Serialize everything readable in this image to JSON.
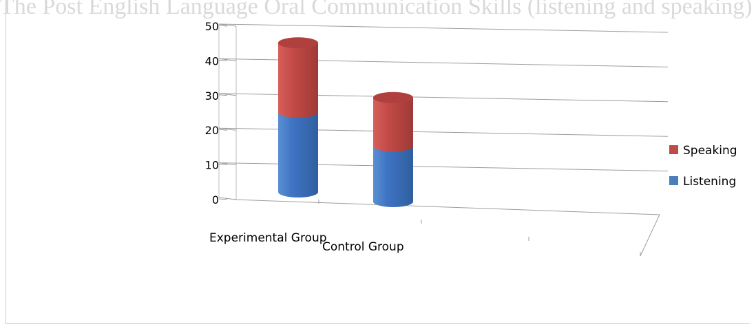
{
  "chart_data": {
    "type": "bar",
    "stacked": true,
    "title": "The Post English Language Oral Communication Skills (listening and speaking)",
    "categories": [
      "Experimental Group",
      "Control Group"
    ],
    "series": [
      {
        "name": "Listening",
        "values": [
          23,
          16
        ],
        "color": "#4a7ebb"
      },
      {
        "name": "Speaking",
        "values": [
          20,
          14
        ],
        "color": "#be4b48"
      }
    ],
    "ylim": [
      0,
      50
    ],
    "yticks": [
      0,
      10,
      20,
      30,
      40,
      50
    ],
    "grid": true,
    "legend_position": "right",
    "style": "3d-cylinder"
  }
}
